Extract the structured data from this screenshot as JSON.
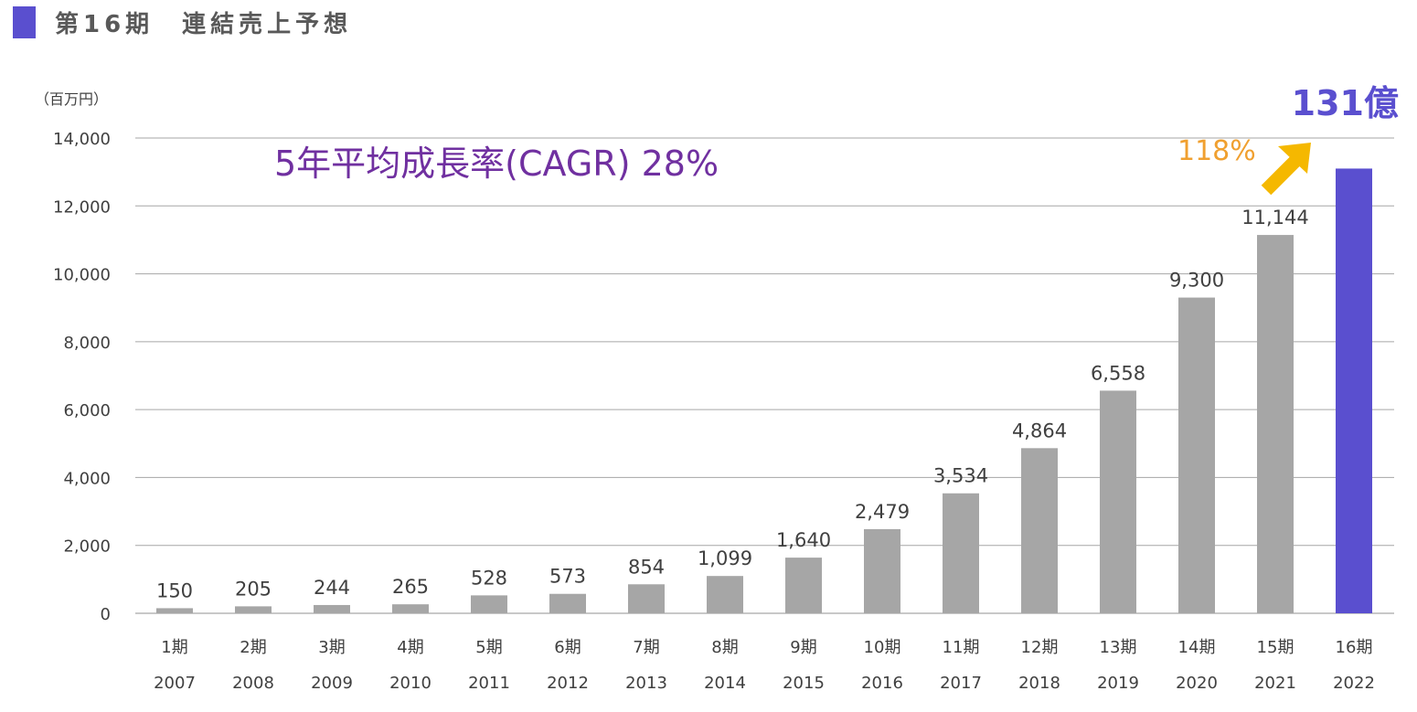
{
  "header": {
    "title": "第16期　連結売上予想"
  },
  "colors": {
    "accent": "#5a4fcf",
    "bar": "#a6a6a6",
    "highlight_bar": "#5a4fcf",
    "cagr_text": "#7030a0",
    "growth_text": "#f0a030",
    "arrow": "#f5b800",
    "grid": "#a6a6a6",
    "text": "#404040"
  },
  "chart_data": {
    "type": "bar",
    "unit_label": "（百万円）",
    "ylim": [
      0,
      14000
    ],
    "y_ticks": [
      "0",
      "2,000",
      "4,000",
      "6,000",
      "8,000",
      "10,000",
      "12,000",
      "14,000"
    ],
    "grid": true,
    "periods": [
      "1期",
      "2期",
      "3期",
      "4期",
      "5期",
      "6期",
      "7期",
      "8期",
      "9期",
      "10期",
      "11期",
      "12期",
      "13期",
      "14期",
      "15期",
      "16期"
    ],
    "years": [
      "2007",
      "2008",
      "2009",
      "2010",
      "2011",
      "2012",
      "2013",
      "2014",
      "2015",
      "2016",
      "2017",
      "2018",
      "2019",
      "2020",
      "2021",
      "2022"
    ],
    "values": [
      150,
      205,
      244,
      265,
      528,
      573,
      854,
      1099,
      1640,
      2479,
      3534,
      4864,
      6558,
      9300,
      11144,
      13100
    ],
    "value_labels": [
      "150",
      "205",
      "244",
      "265",
      "528",
      "573",
      "854",
      "1,099",
      "1,640",
      "2,479",
      "3,534",
      "4,864",
      "6,558",
      "9,300",
      "11,144",
      ""
    ],
    "highlight_index": 15,
    "annotations": {
      "cagr": "5年平均成長率(CAGR) 28%",
      "growth": "118%",
      "forecast": "131億"
    }
  }
}
